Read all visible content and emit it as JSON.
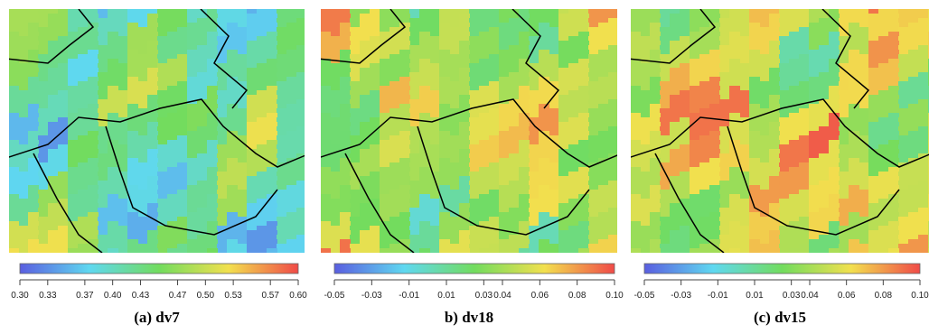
{
  "chart_data": [
    {
      "type": "colorbar",
      "title": "(a) dv7",
      "xlim": [
        0.3,
        0.6
      ],
      "xticks": [
        {
          "value": 0.3,
          "label": "0.30"
        },
        0.33,
        0.37,
        {
          "value": 0.4,
          "label": "0.40"
        },
        0.43,
        0.47,
        {
          "value": 0.5,
          "label": "0.50"
        },
        0.53,
        0.57,
        {
          "value": 0.6,
          "label": "0.60"
        }
      ]
    },
    {
      "type": "colorbar",
      "title": "b) dv18",
      "xlim": [
        -0.05,
        0.1
      ],
      "xticks": [
        -0.05,
        -0.03,
        -0.01,
        0.01,
        0.03,
        0.04,
        0.06,
        0.08,
        {
          "value": 0.1,
          "label": "0.10"
        }
      ]
    },
    {
      "type": "colorbar",
      "title": "(c) dv15",
      "xlim": [
        -0.05,
        0.1
      ],
      "xticks": [
        -0.05,
        -0.03,
        -0.01,
        0.01,
        0.03,
        0.04,
        0.06,
        0.08,
        {
          "value": 0.1,
          "label": "0.10"
        }
      ]
    }
  ]
}
